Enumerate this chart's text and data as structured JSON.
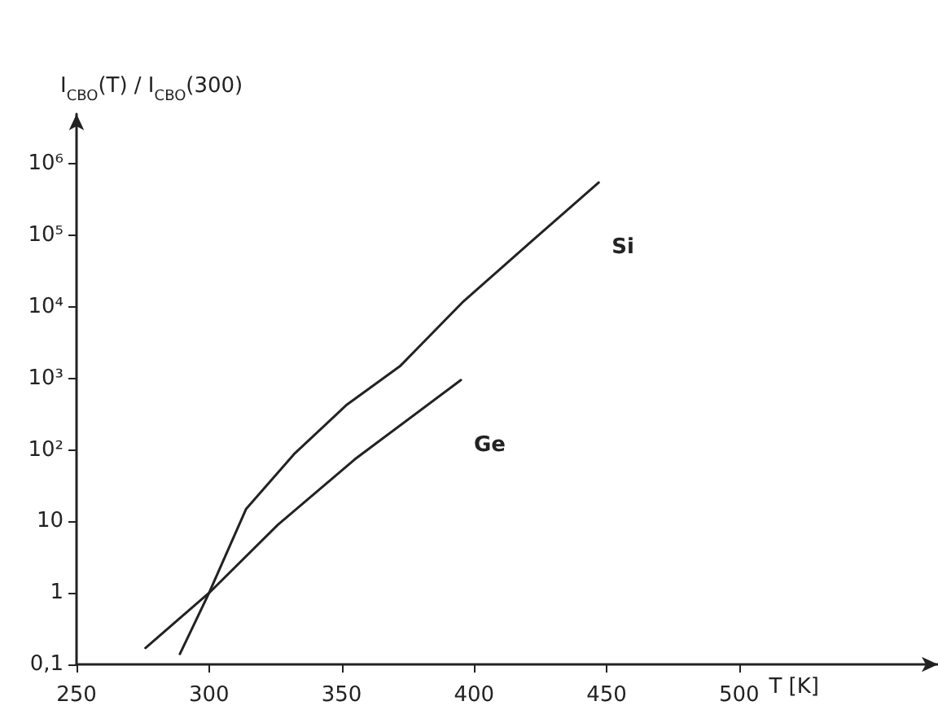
{
  "chart_data": {
    "type": "line",
    "xlabel": "T [K]",
    "ylabel": "I$_{CBO}$(T) / I$_{CBO}$(300)",
    "series": [
      {
        "name": "Si",
        "color": "#222222",
        "x": [
          289,
          300,
          314,
          332,
          352,
          372,
          396,
          422,
          447
        ],
        "values": [
          0.14,
          1,
          15,
          87,
          430,
          1480,
          12000,
          85000,
          550000
        ]
      },
      {
        "name": "Ge",
        "color": "#222222",
        "x": [
          276,
          300,
          326,
          355,
          395
        ],
        "values": [
          0.17,
          1,
          9,
          74,
          950
        ]
      }
    ],
    "xlim": [
      250,
      575
    ],
    "xticks": [
      250,
      300,
      350,
      400,
      450,
      500
    ],
    "ylim": [
      0.1,
      5000000
    ],
    "yticks": [
      {
        "value": 0.1,
        "label": "0,1"
      },
      1,
      10,
      {
        "value": 100,
        "label": "10²"
      },
      {
        "value": 1000,
        "label": "10³"
      },
      {
        "value": 10000,
        "label": "10⁴"
      },
      {
        "value": 100000,
        "label": "10⁵"
      },
      {
        "value": 1000000,
        "label": "10⁶"
      }
    ],
    "log": "y",
    "grid": false,
    "marker": "none",
    "line_style": "solid",
    "legend": false
  }
}
